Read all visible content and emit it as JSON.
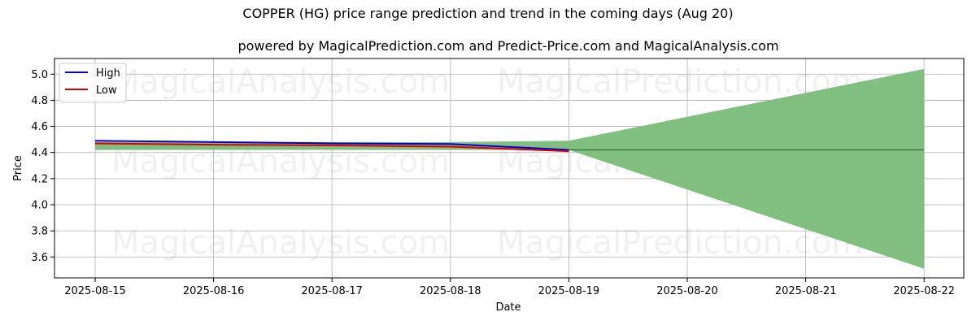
{
  "chart_data": {
    "type": "line",
    "title": "COPPER (HG) price range prediction and trend in the coming days (Aug 20)",
    "subtitle": "powered by MagicalPrediction.com and Predict-Price.com and MagicalAnalysis.com",
    "xlabel": "Date",
    "ylabel": "Price",
    "x_ticks": [
      "2025-08-15",
      "2025-08-16",
      "2025-08-17",
      "2025-08-18",
      "2025-08-19",
      "2025-08-20",
      "2025-08-21",
      "2025-08-22"
    ],
    "y_ticks": [
      "3.6",
      "3.8",
      "4.0",
      "4.2",
      "4.4",
      "4.6",
      "4.8",
      "5.0"
    ],
    "ylim": [
      3.44,
      5.12
    ],
    "grid": true,
    "legend_position": "top-left",
    "watermarks": [
      "MagicalAnalysis.com",
      "MagicalPrediction.com"
    ],
    "series": [
      {
        "name": "High",
        "color": "#0000cc",
        "points": [
          [
            "2025-08-15",
            4.49
          ],
          [
            "2025-08-16",
            4.48
          ],
          [
            "2025-08-17",
            4.47
          ],
          [
            "2025-08-18",
            4.465
          ],
          [
            "2025-08-19",
            4.42
          ]
        ]
      },
      {
        "name": "Low",
        "color": "#dd0000",
        "points": [
          [
            "2025-08-15",
            4.47
          ],
          [
            "2025-08-16",
            4.46
          ],
          [
            "2025-08-17",
            4.455
          ],
          [
            "2025-08-18",
            4.445
          ],
          [
            "2025-08-19",
            4.41
          ]
        ]
      }
    ],
    "band_color": "#80bf80",
    "band_history": {
      "x": [
        "2025-08-15",
        "2025-08-18",
        "2025-08-19"
      ],
      "upper": [
        4.48,
        4.48,
        4.49
      ],
      "lower": [
        4.42,
        4.42,
        4.42
      ]
    },
    "band_forecast": {
      "x": [
        "2025-08-19",
        "2025-08-22"
      ],
      "upper": [
        4.49,
        5.04
      ],
      "lower": [
        4.42,
        3.51
      ]
    },
    "trend_line": {
      "color": "#2a5a2a",
      "x": [
        "2025-08-19",
        "2025-08-22"
      ],
      "y": [
        4.42,
        4.42
      ]
    }
  }
}
